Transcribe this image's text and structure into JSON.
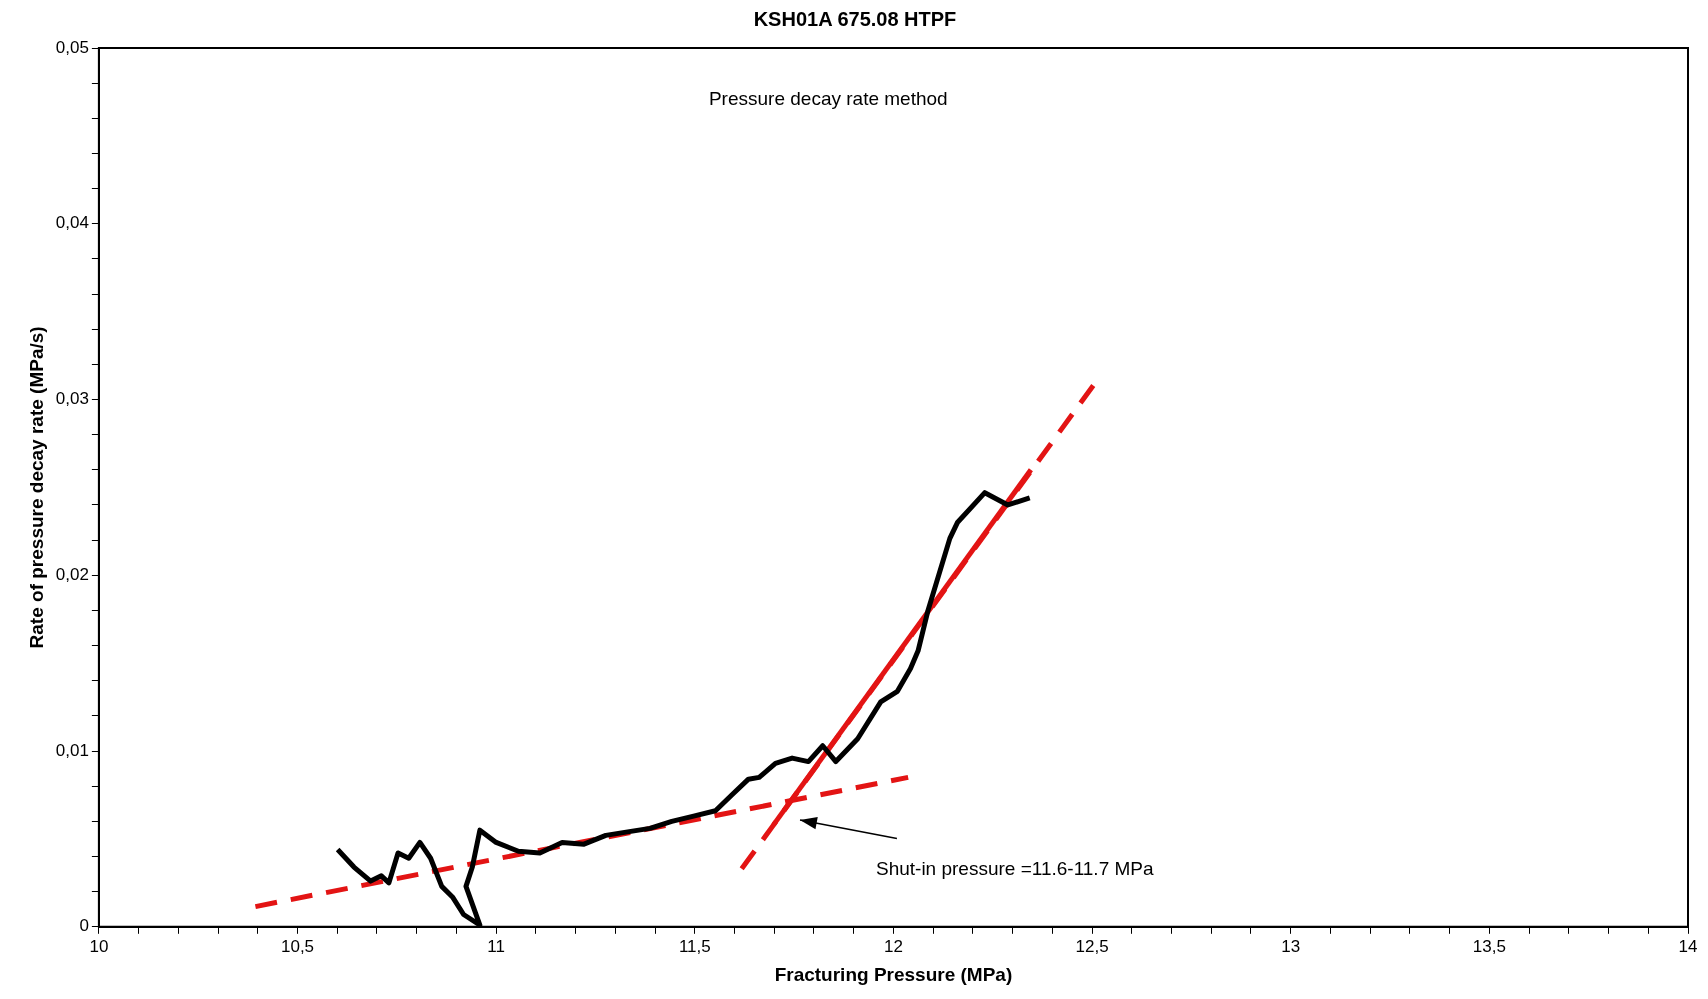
{
  "chart_data": {
    "type": "line",
    "title": "KSH01A 675.08 HTPF",
    "xlabel": "Fracturing Pressure (MPa)",
    "ylabel": "Rate of pressure decay rate (MPa/s)",
    "xlim": [
      10,
      14
    ],
    "ylim": [
      0,
      0.05
    ],
    "xticks": [
      10,
      {
        "value": 10.1,
        "label": null
      },
      {
        "value": 10.2,
        "label": null
      },
      {
        "value": 10.3,
        "label": null
      },
      {
        "value": 10.4,
        "label": null
      },
      {
        "value": 10.5,
        "label": "10,5"
      },
      {
        "value": 10.6,
        "label": null
      },
      {
        "value": 10.7,
        "label": null
      },
      {
        "value": 10.8,
        "label": null
      },
      {
        "value": 10.9,
        "label": null
      },
      11,
      {
        "value": 11.1,
        "label": null
      },
      {
        "value": 11.2,
        "label": null
      },
      {
        "value": 11.3,
        "label": null
      },
      {
        "value": 11.4,
        "label": null
      },
      {
        "value": 11.5,
        "label": "11,5"
      },
      {
        "value": 11.6,
        "label": null
      },
      {
        "value": 11.7,
        "label": null
      },
      {
        "value": 11.8,
        "label": null
      },
      {
        "value": 11.9,
        "label": null
      },
      12,
      {
        "value": 12.1,
        "label": null
      },
      {
        "value": 12.2,
        "label": null
      },
      {
        "value": 12.3,
        "label": null
      },
      {
        "value": 12.4,
        "label": null
      },
      {
        "value": 12.5,
        "label": "12,5"
      },
      {
        "value": 12.6,
        "label": null
      },
      {
        "value": 12.7,
        "label": null
      },
      {
        "value": 12.8,
        "label": null
      },
      {
        "value": 12.9,
        "label": null
      },
      13,
      {
        "value": 13.1,
        "label": null
      },
      {
        "value": 13.2,
        "label": null
      },
      {
        "value": 13.3,
        "label": null
      },
      {
        "value": 13.4,
        "label": null
      },
      {
        "value": 13.5,
        "label": "13,5"
      },
      {
        "value": 13.6,
        "label": null
      },
      {
        "value": 13.7,
        "label": null
      },
      {
        "value": 13.8,
        "label": null
      },
      {
        "value": 13.9,
        "label": null
      },
      14
    ],
    "yticks": [
      0,
      {
        "value": 0.002,
        "label": null
      },
      {
        "value": 0.004,
        "label": null
      },
      {
        "value": 0.006,
        "label": null
      },
      {
        "value": 0.008,
        "label": null
      },
      {
        "value": 0.01,
        "label": "0,01"
      },
      {
        "value": 0.012,
        "label": null
      },
      {
        "value": 0.014,
        "label": null
      },
      {
        "value": 0.016,
        "label": null
      },
      {
        "value": 0.018,
        "label": null
      },
      {
        "value": 0.02,
        "label": "0,02"
      },
      {
        "value": 0.022,
        "label": null
      },
      {
        "value": 0.024,
        "label": null
      },
      {
        "value": 0.026,
        "label": null
      },
      {
        "value": 0.028,
        "label": null
      },
      {
        "value": 0.03,
        "label": "0,03"
      },
      {
        "value": 0.032,
        "label": null
      },
      {
        "value": 0.034,
        "label": null
      },
      {
        "value": 0.036,
        "label": null
      },
      {
        "value": 0.038,
        "label": null
      },
      {
        "value": 0.04,
        "label": "0,04"
      },
      {
        "value": 0.042,
        "label": null
      },
      {
        "value": 0.044,
        "label": null
      },
      {
        "value": 0.046,
        "label": null
      },
      {
        "value": 0.048,
        "label": null
      },
      {
        "value": 0.05,
        "label": "0,05"
      }
    ],
    "grid": false,
    "legend": false,
    "marker": "none",
    "series": [
      {
        "color": "#000000",
        "line_style": "solid",
        "x": [
          10.601,
          10.642,
          10.684,
          10.711,
          10.73,
          10.753,
          10.78,
          10.808,
          10.835,
          10.863,
          10.89,
          10.918,
          10.959,
          10.924,
          10.94,
          10.959,
          11.0,
          11.056,
          11.11,
          11.166,
          11.221,
          11.276,
          11.331,
          11.387,
          11.442,
          11.497,
          11.552,
          11.593,
          11.635,
          11.662,
          11.703,
          11.745,
          11.786,
          11.822,
          11.855,
          11.91,
          11.968,
          12.01,
          12.043,
          12.062,
          12.087,
          12.142,
          12.161,
          12.23,
          12.288,
          12.343
        ],
        "values": [
          0.0044,
          0.0034,
          0.0026,
          0.0029,
          0.0025,
          0.0042,
          0.0039,
          0.0048,
          0.0039,
          0.0023,
          0.0017,
          0.0007,
          0.0001,
          0.0023,
          0.0034,
          0.0055,
          0.0048,
          0.0043,
          0.0042,
          0.0048,
          0.0047,
          0.0052,
          0.0054,
          0.0056,
          0.006,
          0.0063,
          0.0066,
          0.0075,
          0.0084,
          0.0085,
          0.0093,
          0.0096,
          0.0094,
          0.0103,
          0.0094,
          0.0107,
          0.0128,
          0.0134,
          0.0147,
          0.0157,
          0.018,
          0.0221,
          0.023,
          0.0247,
          0.024,
          0.0244
        ]
      },
      {
        "color": "#e31414",
        "line_style": "dashed",
        "x": [
          10.394,
          12.037
        ],
        "values": [
          0.00115,
          0.0085
        ]
      },
      {
        "color": "#e31414",
        "line_style": "dashed",
        "x": [
          11.618,
          12.503
        ],
        "values": [
          0.0033,
          0.0308
        ]
      },
      {
        "color": "#e31414",
        "line_style": "solid",
        "x": [
          11.698,
          12.346
        ],
        "values": [
          0.0058,
          0.026
        ]
      }
    ],
    "annotations": [
      "Pressure decay rate method",
      "Shut-in pressure =11.6-11.7 MPa"
    ]
  }
}
